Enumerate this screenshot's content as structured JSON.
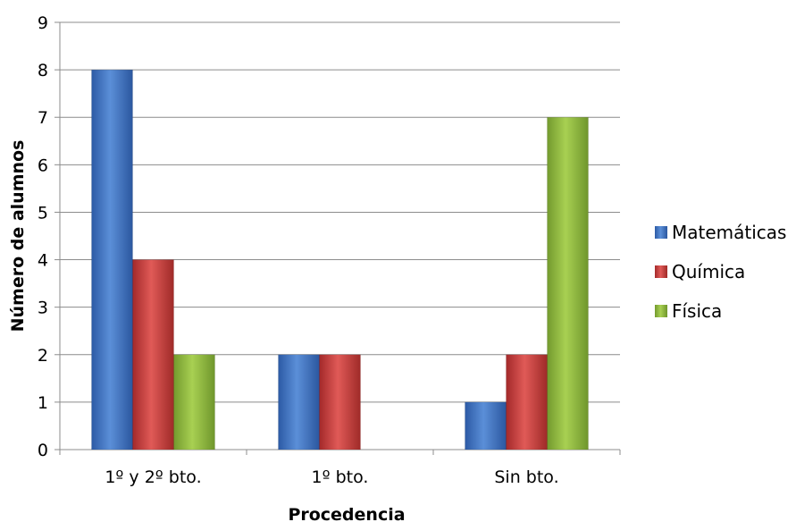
{
  "chart_data": {
    "type": "bar",
    "title": "",
    "xlabel": "Procedencia",
    "ylabel": "Número de alumnos",
    "categories": [
      "1º y 2º bto.",
      "1º bto.",
      "Sin bto."
    ],
    "series": [
      {
        "name": "Matemáticas",
        "values": [
          8,
          2,
          1
        ],
        "color": "#3a6fc2"
      },
      {
        "name": "Química",
        "values": [
          4,
          2,
          2
        ],
        "color": "#c03634"
      },
      {
        "name": "Física",
        "values": [
          2,
          0,
          7
        ],
        "color": "#8ab63c"
      }
    ],
    "ylim": [
      0,
      9
    ],
    "yticks": [
      "0",
      "1",
      "2",
      "3",
      "4",
      "5",
      "6",
      "7",
      "8",
      "9"
    ],
    "grid": true,
    "legend_position": "right"
  }
}
